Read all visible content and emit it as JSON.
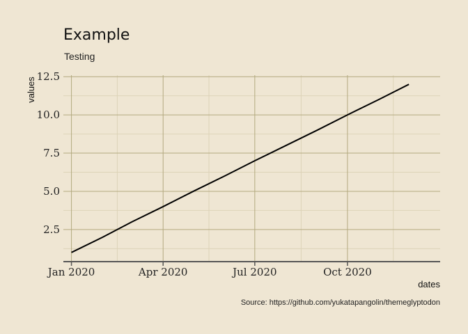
{
  "chart_data": {
    "type": "line",
    "title": "Example",
    "subtitle": "Testing",
    "xlabel": "dates",
    "ylabel": "values",
    "caption": "Source: https://github.com/yukatapangolin/themeglyptodon",
    "x_type": "date",
    "x": [
      "2020-01-01",
      "2020-02-01",
      "2020-03-01",
      "2020-04-01",
      "2020-05-01",
      "2020-06-01",
      "2020-07-01",
      "2020-08-01",
      "2020-09-01",
      "2020-10-01",
      "2020-11-01",
      "2020-12-01"
    ],
    "series": [
      {
        "values": [
          1,
          2,
          3,
          4,
          5,
          6,
          7,
          8,
          9,
          10,
          11,
          12
        ]
      }
    ],
    "xlim": [
      "2019-12-24",
      "2021-01-01"
    ],
    "ylim": [
      0.4,
      12.6
    ],
    "y_ticks": [
      2.5,
      5.0,
      7.5,
      10.0,
      12.5
    ],
    "x_ticks": [
      {
        "date": "2020-01-01",
        "label": "Jan 2020"
      },
      {
        "date": "2020-04-01",
        "label": "Apr 2020"
      },
      {
        "date": "2020-07-01",
        "label": "Jul 2020"
      },
      {
        "date": "2020-10-01",
        "label": "Oct 2020"
      }
    ],
    "grid": true,
    "line_color": "#000000",
    "background": "#efe6d3"
  }
}
